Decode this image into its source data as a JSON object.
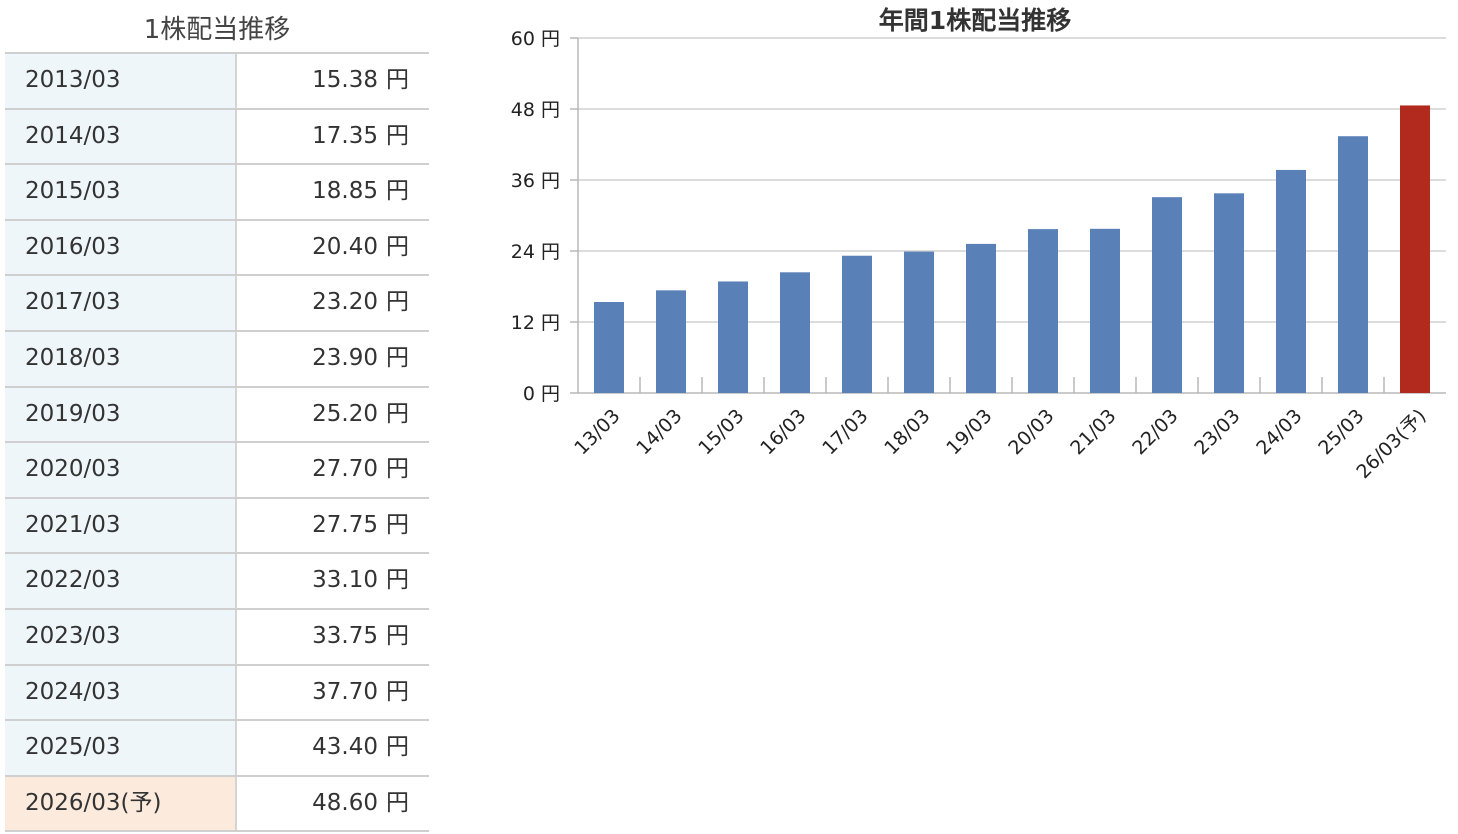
{
  "table": {
    "title": "1株配当推移",
    "unit": "円",
    "rows": [
      {
        "period": "2013/03",
        "value": "15.38"
      },
      {
        "period": "2014/03",
        "value": "17.35"
      },
      {
        "period": "2015/03",
        "value": "18.85"
      },
      {
        "period": "2016/03",
        "value": "20.40"
      },
      {
        "period": "2017/03",
        "value": "23.20"
      },
      {
        "period": "2018/03",
        "value": "23.90"
      },
      {
        "period": "2019/03",
        "value": "25.20"
      },
      {
        "period": "2020/03",
        "value": "27.70"
      },
      {
        "period": "2021/03",
        "value": "27.75"
      },
      {
        "period": "2022/03",
        "value": "33.10"
      },
      {
        "period": "2023/03",
        "value": "33.75"
      },
      {
        "period": "2024/03",
        "value": "37.70"
      },
      {
        "period": "2025/03",
        "value": "43.40"
      },
      {
        "period": "2026/03(予)",
        "value": "48.60",
        "forecast": true
      }
    ]
  },
  "chart_data": {
    "type": "bar",
    "title": "年間1株配当推移",
    "categories": [
      "13/03",
      "14/03",
      "15/03",
      "16/03",
      "17/03",
      "18/03",
      "19/03",
      "20/03",
      "21/03",
      "22/03",
      "23/03",
      "24/03",
      "25/03",
      "26/03(予)"
    ],
    "values": [
      15.38,
      17.35,
      18.85,
      20.4,
      23.2,
      23.9,
      25.2,
      27.7,
      27.75,
      33.1,
      33.75,
      37.7,
      43.4,
      48.6
    ],
    "ylim": [
      0,
      60
    ],
    "yticks": [
      0,
      12,
      24,
      36,
      48,
      60
    ],
    "ytick_unit": "円",
    "grid": true,
    "colors": {
      "actual": "#5a80b8",
      "forecast": "#b22a1e",
      "grid": "#d0d0d0",
      "axis": "#b8b8b8"
    }
  }
}
